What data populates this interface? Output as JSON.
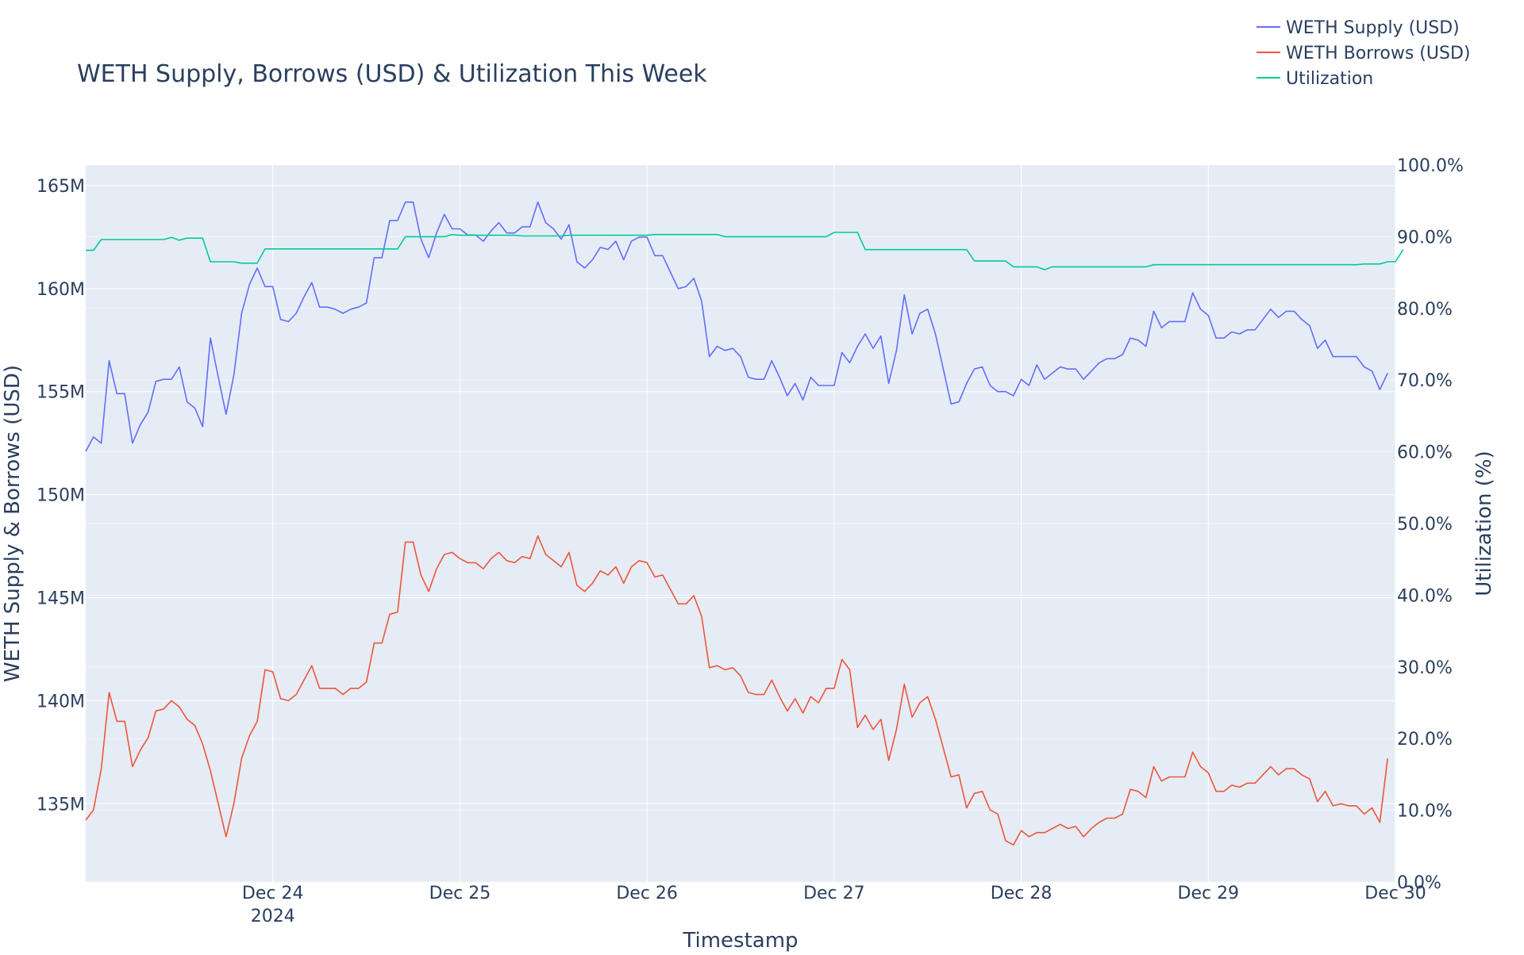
{
  "chart_data": {
    "type": "line",
    "title": "WETH Supply, Borrows (USD) & Utilization This Week",
    "xlabel": "Timestamp",
    "ylabel": "WETH Supply & Borrows (USD)",
    "y2label": "Utilization (%)",
    "x_start": "2024-12-23T00:00",
    "x_step_hours": 1,
    "xlim": [
      "2024-12-23T00:00",
      "2024-12-30T00:00"
    ],
    "ylim": [
      131.2,
      166
    ],
    "y2lim": [
      0,
      100
    ],
    "x_ticks": [
      {
        "at": "2024-12-24",
        "label": "Dec 24",
        "sublabel": "2024"
      },
      {
        "at": "2024-12-25",
        "label": "Dec 25",
        "sublabel": ""
      },
      {
        "at": "2024-12-26",
        "label": "Dec 26",
        "sublabel": ""
      },
      {
        "at": "2024-12-27",
        "label": "Dec 27",
        "sublabel": ""
      },
      {
        "at": "2024-12-28",
        "label": "Dec 28",
        "sublabel": ""
      },
      {
        "at": "2024-12-29",
        "label": "Dec 29",
        "sublabel": ""
      },
      {
        "at": "2024-12-30",
        "label": "Dec 30",
        "sublabel": ""
      }
    ],
    "y_ticks": [
      {
        "value": 135,
        "label": "135M"
      },
      {
        "value": 140,
        "label": "140M"
      },
      {
        "value": 145,
        "label": "145M"
      },
      {
        "value": 150,
        "label": "150M"
      },
      {
        "value": 155,
        "label": "155M"
      },
      {
        "value": 160,
        "label": "160M"
      },
      {
        "value": 165,
        "label": "165M"
      }
    ],
    "y2_ticks": [
      {
        "value": 0,
        "label": "0.0%"
      },
      {
        "value": 10,
        "label": "10.0%"
      },
      {
        "value": 20,
        "label": "20.0%"
      },
      {
        "value": 30,
        "label": "30.0%"
      },
      {
        "value": 40,
        "label": "40.0%"
      },
      {
        "value": 50,
        "label": "50.0%"
      },
      {
        "value": 60,
        "label": "60.0%"
      },
      {
        "value": 70,
        "label": "70.0%"
      },
      {
        "value": 80,
        "label": "80.0%"
      },
      {
        "value": 90,
        "label": "90.0%"
      },
      {
        "value": 100,
        "label": "100.0%"
      }
    ],
    "legend_position": "top-right",
    "grid": true,
    "colors": {
      "plot_bg": "#e5ecf6",
      "grid": "#ffffff",
      "text": "#2a3f5f"
    },
    "series": [
      {
        "name": "WETH Supply (USD)",
        "axis": "y",
        "color": "#636efa",
        "values": [
          152.1,
          152.8,
          152.5,
          156.5,
          154.9,
          154.9,
          152.5,
          153.4,
          154.0,
          155.5,
          155.6,
          155.6,
          156.2,
          154.5,
          154.2,
          153.3,
          157.6,
          155.7,
          153.9,
          155.8,
          158.8,
          160.2,
          161.0,
          160.1,
          160.1,
          158.5,
          158.4,
          158.8,
          159.6,
          160.3,
          159.1,
          159.1,
          159.0,
          158.8,
          159.0,
          159.1,
          159.3,
          161.5,
          161.5,
          163.3,
          163.3,
          164.2,
          164.2,
          162.4,
          161.5,
          162.7,
          163.6,
          162.9,
          162.9,
          162.6,
          162.6,
          162.3,
          162.8,
          163.2,
          162.7,
          162.7,
          163.0,
          163.0,
          164.2,
          163.2,
          162.9,
          162.4,
          163.1,
          161.3,
          161.0,
          161.4,
          162.0,
          161.9,
          162.3,
          161.4,
          162.3,
          162.5,
          162.5,
          161.6,
          161.6,
          160.8,
          160.0,
          160.1,
          160.5,
          159.4,
          156.7,
          157.2,
          157.0,
          157.1,
          156.7,
          155.7,
          155.6,
          155.6,
          156.5,
          155.7,
          154.8,
          155.4,
          154.6,
          155.7,
          155.3,
          155.3,
          155.3,
          156.9,
          156.4,
          157.2,
          157.8,
          157.1,
          157.7,
          155.4,
          157.0,
          159.7,
          157.8,
          158.8,
          159.0,
          157.8,
          156.1,
          154.4,
          154.5,
          155.4,
          156.1,
          156.2,
          155.3,
          155.0,
          155.0,
          154.8,
          155.6,
          155.3,
          156.3,
          155.6,
          155.9,
          156.2,
          156.1,
          156.1,
          155.6,
          156.0,
          156.4,
          156.6,
          156.6,
          156.8,
          157.6,
          157.5,
          157.2,
          158.9,
          158.1,
          158.4,
          158.4,
          158.4,
          159.8,
          159.0,
          158.7,
          157.6,
          157.6,
          157.9,
          157.8,
          158.0,
          158.0,
          158.5,
          159.0,
          158.6,
          158.9,
          158.9,
          158.5,
          158.2,
          157.1,
          157.5,
          156.7,
          156.7,
          156.7,
          156.7,
          156.2,
          156.0,
          155.1,
          155.9
        ]
      },
      {
        "name": "WETH Borrows (USD)",
        "axis": "y",
        "color": "#ef553b",
        "values": [
          134.2,
          134.7,
          136.7,
          140.4,
          139.0,
          139.0,
          136.8,
          137.6,
          138.2,
          139.5,
          139.6,
          140.0,
          139.7,
          139.1,
          138.8,
          137.9,
          136.6,
          135.0,
          133.4,
          135.0,
          137.2,
          138.3,
          139.0,
          141.5,
          141.4,
          140.1,
          140.0,
          140.3,
          141.0,
          141.7,
          140.6,
          140.6,
          140.6,
          140.3,
          140.6,
          140.6,
          140.9,
          142.8,
          142.8,
          144.2,
          144.3,
          147.7,
          147.7,
          146.1,
          145.3,
          146.4,
          147.1,
          147.2,
          146.9,
          146.7,
          146.7,
          146.4,
          146.9,
          147.2,
          146.8,
          146.7,
          147.0,
          146.9,
          148.0,
          147.1,
          146.8,
          146.5,
          147.2,
          145.6,
          145.3,
          145.7,
          146.3,
          146.1,
          146.5,
          145.7,
          146.5,
          146.8,
          146.7,
          146.0,
          146.1,
          145.4,
          144.7,
          144.7,
          145.1,
          144.1,
          141.6,
          141.7,
          141.5,
          141.6,
          141.2,
          140.4,
          140.3,
          140.3,
          141.0,
          140.2,
          139.5,
          140.1,
          139.4,
          140.2,
          139.9,
          140.6,
          140.6,
          142.0,
          141.5,
          138.7,
          139.3,
          138.6,
          139.1,
          137.1,
          138.6,
          140.8,
          139.2,
          139.9,
          140.2,
          139.1,
          137.7,
          136.3,
          136.4,
          134.8,
          135.5,
          135.6,
          134.7,
          134.5,
          133.2,
          133.0,
          133.7,
          133.4,
          133.6,
          133.6,
          133.8,
          134.0,
          133.8,
          133.9,
          133.4,
          133.8,
          134.1,
          134.3,
          134.3,
          134.5,
          135.7,
          135.6,
          135.3,
          136.8,
          136.1,
          136.3,
          136.3,
          136.3,
          137.5,
          136.8,
          136.5,
          135.6,
          135.6,
          135.9,
          135.8,
          136.0,
          136.0,
          136.4,
          136.8,
          136.4,
          136.7,
          136.7,
          136.4,
          136.2,
          135.1,
          135.6,
          134.9,
          135.0,
          134.9,
          134.9,
          134.5,
          134.8,
          134.1,
          137.2
        ]
      },
      {
        "name": "Utilization",
        "axis": "y2",
        "color": "#00cc96",
        "values": [
          88.1,
          88.1,
          89.6,
          89.6,
          89.6,
          89.6,
          89.6,
          89.6,
          89.6,
          89.6,
          89.6,
          89.9,
          89.5,
          89.8,
          89.8,
          89.8,
          86.5,
          86.5,
          86.5,
          86.5,
          86.3,
          86.3,
          86.3,
          88.3,
          88.3,
          88.3,
          88.3,
          88.3,
          88.3,
          88.3,
          88.3,
          88.3,
          88.3,
          88.3,
          88.3,
          88.3,
          88.3,
          88.3,
          88.3,
          88.3,
          88.3,
          90.0,
          90.0,
          90.0,
          90.0,
          90.0,
          90.0,
          90.3,
          90.2,
          90.2,
          90.2,
          90.2,
          90.2,
          90.2,
          90.2,
          90.2,
          90.1,
          90.1,
          90.1,
          90.1,
          90.1,
          90.1,
          90.2,
          90.2,
          90.2,
          90.2,
          90.2,
          90.2,
          90.2,
          90.2,
          90.2,
          90.2,
          90.2,
          90.3,
          90.3,
          90.3,
          90.3,
          90.3,
          90.3,
          90.3,
          90.3,
          90.3,
          90.0,
          90.0,
          90.0,
          90.0,
          90.0,
          90.0,
          90.0,
          90.0,
          90.0,
          90.0,
          90.0,
          90.0,
          90.0,
          90.0,
          90.6,
          90.6,
          90.6,
          90.6,
          88.2,
          88.2,
          88.2,
          88.2,
          88.2,
          88.2,
          88.2,
          88.2,
          88.2,
          88.2,
          88.2,
          88.2,
          88.2,
          88.2,
          86.6,
          86.6,
          86.6,
          86.6,
          86.6,
          85.8,
          85.8,
          85.8,
          85.8,
          85.4,
          85.8,
          85.8,
          85.8,
          85.8,
          85.8,
          85.8,
          85.8,
          85.8,
          85.8,
          85.8,
          85.8,
          85.8,
          85.8,
          86.1,
          86.1,
          86.1,
          86.1,
          86.1,
          86.1,
          86.1,
          86.1,
          86.1,
          86.1,
          86.1,
          86.1,
          86.1,
          86.1,
          86.1,
          86.1,
          86.1,
          86.1,
          86.1,
          86.1,
          86.1,
          86.1,
          86.1,
          86.1,
          86.1,
          86.1,
          86.1,
          86.2,
          86.2,
          86.2,
          86.5,
          86.5,
          88.2
        ]
      }
    ]
  }
}
